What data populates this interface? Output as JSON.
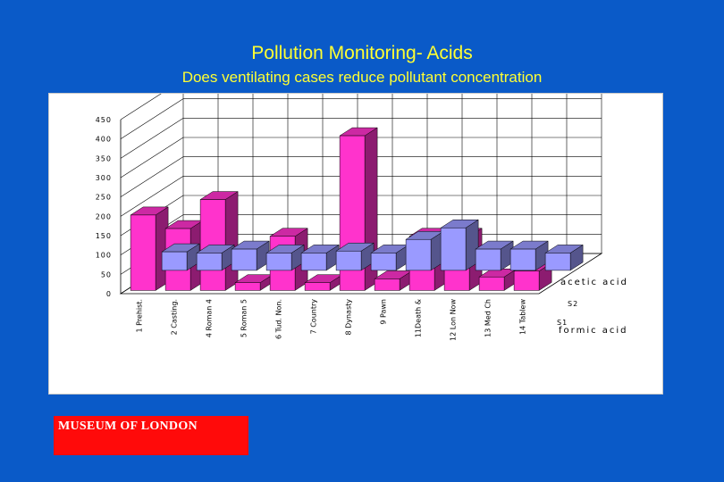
{
  "chart_data": {
    "type": "bar",
    "title": "Pollution Monitoring- Acids",
    "subtitle": "Does ventilating cases reduce pollutant concentration",
    "categories": [
      "1 Prehist.",
      "2 Casting.",
      "4 Roman 4",
      "5 Roman 5",
      "6 Tud. Non.",
      "7 Country",
      "8 Dynasty",
      "9 Pawn",
      "11Death &",
      "12 Lon Now",
      "13 Med Ch",
      "14 Tablew"
    ],
    "series": [
      {
        "name": "formic acid",
        "values": [
          48,
          45,
          55,
          45,
          45,
          50,
          45,
          80,
          110,
          55,
          55,
          45
        ],
        "color": "#9a9aff"
      },
      {
        "name": "acetic acid",
        "values": [
          195,
          160,
          235,
          20,
          140,
          20,
          400,
          30,
          140,
          140,
          35,
          50
        ],
        "color": "#ff33cc"
      }
    ],
    "yticks": [
      "0",
      "50",
      "100",
      "150",
      "200",
      "250",
      "300",
      "350",
      "400",
      "450"
    ],
    "ylim": [
      0,
      450
    ],
    "series_axis_labels": [
      "S1",
      "S2"
    ],
    "grid": true
  },
  "logo": {
    "text": "MUSEUM OF LONDON"
  }
}
